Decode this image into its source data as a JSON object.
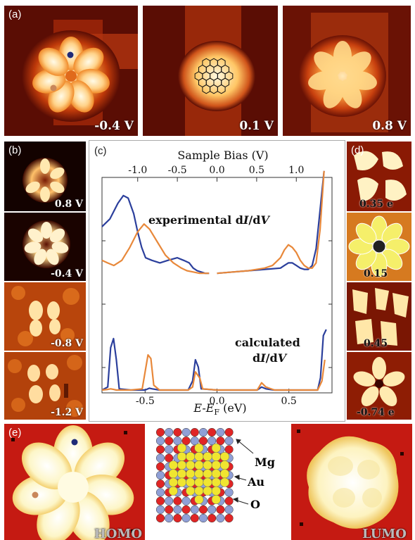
{
  "panels": {
    "a": {
      "label": "(a)",
      "images": [
        {
          "voltage": "-0.4 V"
        },
        {
          "voltage": "0.1 V"
        },
        {
          "voltage": "0.8 V"
        }
      ]
    },
    "b": {
      "label": "(b)",
      "images": [
        {
          "voltage": "0.8 V"
        },
        {
          "voltage": "-0.4 V"
        },
        {
          "voltage": "-0.8 V"
        },
        {
          "voltage": "-1.2 V"
        }
      ]
    },
    "c": {
      "label": "(c)"
    },
    "d": {
      "label": "(d)",
      "images": [
        {
          "voltage": "0.35 e"
        },
        {
          "voltage": "0.15"
        },
        {
          "voltage": "0.45"
        },
        {
          "voltage": "-0.74 e"
        }
      ]
    },
    "e": {
      "label": "(e)",
      "homo": "HOMO",
      "lumo": "LUMO",
      "atoms": {
        "mg": "Mg",
        "au": "Au",
        "o": "O"
      },
      "colors": {
        "mg": "#8f9fd6",
        "au": "#f0e530",
        "o": "#e02525"
      }
    }
  },
  "chart_data": {
    "type": "line",
    "top_axis": {
      "label": "Sample Bias (V)",
      "range": [
        -1.45,
        1.45
      ],
      "ticks": [
        "-1.0",
        "-0.5",
        "0.0",
        "0.5",
        "1.0"
      ],
      "tick_values": [
        -1.0,
        -0.5,
        0.0,
        0.5,
        1.0
      ]
    },
    "bottom_axis": {
      "label_main": "E-E",
      "label_sub": "F",
      "label_unit": " (eV)",
      "range": [
        -0.8,
        0.8
      ],
      "ticks": [
        "-0.5",
        "0.0",
        "0.5"
      ],
      "tick_values": [
        -0.5,
        0.0,
        0.5
      ]
    },
    "annotations": {
      "experimental": [
        "experimental d",
        "I",
        "/d",
        "V"
      ],
      "calculated_1": "calculated",
      "calculated_2": [
        "d",
        "I",
        "/d",
        "V"
      ]
    },
    "colors": {
      "blue": "#2b3f9c",
      "orange": "#e8883a"
    },
    "experimental": {
      "x_units": "V",
      "series": [
        {
          "color": "blue",
          "x": [
            -1.45,
            -1.35,
            -1.25,
            -1.18,
            -1.12,
            -1.05,
            -1.0,
            -0.95,
            -0.9,
            -0.82,
            -0.72,
            -0.62,
            -0.5,
            -0.42,
            -0.35,
            -0.3,
            -0.25,
            -0.2,
            -0.15,
            -0.1,
            null,
            0.0,
            0.2,
            0.4,
            0.6,
            0.8,
            0.85,
            0.9,
            0.95,
            1.0,
            1.05,
            1.1,
            1.15,
            1.2,
            1.25,
            1.3,
            1.35
          ],
          "y": [
            0.62,
            0.68,
            0.8,
            0.86,
            0.84,
            0.72,
            0.58,
            0.46,
            0.38,
            0.36,
            0.34,
            0.36,
            0.38,
            0.36,
            0.34,
            0.3,
            0.28,
            0.27,
            0.26,
            0.26,
            null,
            0.26,
            0.27,
            0.28,
            0.29,
            0.3,
            0.32,
            0.34,
            0.34,
            0.32,
            0.3,
            0.29,
            0.29,
            0.32,
            0.45,
            0.75,
            1.05
          ]
        },
        {
          "color": "orange",
          "x": [
            -1.45,
            -1.38,
            -1.3,
            -1.2,
            -1.1,
            -1.0,
            -0.92,
            -0.85,
            -0.75,
            -0.65,
            -0.55,
            -0.45,
            -0.38,
            -0.3,
            -0.22,
            -0.15,
            -0.1,
            null,
            0.0,
            0.2,
            0.4,
            0.6,
            0.7,
            0.8,
            0.85,
            0.9,
            0.95,
            1.0,
            1.05,
            1.1,
            1.15,
            1.2,
            1.25,
            1.3,
            1.35
          ],
          "y": [
            0.36,
            0.34,
            0.32,
            0.36,
            0.46,
            0.58,
            0.64,
            0.6,
            0.5,
            0.4,
            0.34,
            0.3,
            0.28,
            0.27,
            0.26,
            0.26,
            0.26,
            null,
            0.26,
            0.27,
            0.28,
            0.3,
            0.32,
            0.38,
            0.44,
            0.48,
            0.46,
            0.42,
            0.36,
            0.32,
            0.3,
            0.3,
            0.34,
            0.6,
            1.05
          ]
        }
      ]
    },
    "calculated": {
      "x_units": "eV",
      "series": [
        {
          "color": "blue",
          "x": [
            -0.8,
            -0.76,
            -0.74,
            -0.72,
            -0.7,
            -0.68,
            -0.6,
            -0.5,
            -0.47,
            -0.45,
            -0.4,
            -0.2,
            -0.17,
            -0.15,
            -0.13,
            -0.11,
            0.0,
            0.28,
            0.31,
            0.34,
            0.4,
            0.6,
            0.7,
            0.72,
            0.74,
            0.76
          ],
          "y": [
            0.0,
            0.05,
            0.7,
            0.85,
            0.5,
            0.02,
            0.0,
            0.0,
            0.03,
            0.02,
            0.0,
            0.0,
            0.15,
            0.5,
            0.38,
            0.02,
            0.0,
            0.0,
            0.05,
            0.02,
            0.0,
            0.0,
            0.0,
            0.2,
            0.9,
            1.0
          ]
        },
        {
          "color": "orange",
          "x": [
            -0.8,
            -0.76,
            -0.74,
            -0.72,
            -0.7,
            -0.6,
            -0.52,
            -0.5,
            -0.48,
            -0.46,
            -0.44,
            -0.4,
            -0.2,
            -0.17,
            -0.15,
            -0.12,
            -0.1,
            0.0,
            0.28,
            0.31,
            0.34,
            0.4,
            0.6,
            0.7,
            0.73,
            0.75
          ],
          "y": [
            0.0,
            0.01,
            0.02,
            0.01,
            0.0,
            0.0,
            0.02,
            0.3,
            0.58,
            0.52,
            0.08,
            0.0,
            0.0,
            0.05,
            0.3,
            0.2,
            0.02,
            0.0,
            0.0,
            0.12,
            0.05,
            0.0,
            0.0,
            0.0,
            0.15,
            0.5
          ]
        }
      ]
    }
  }
}
